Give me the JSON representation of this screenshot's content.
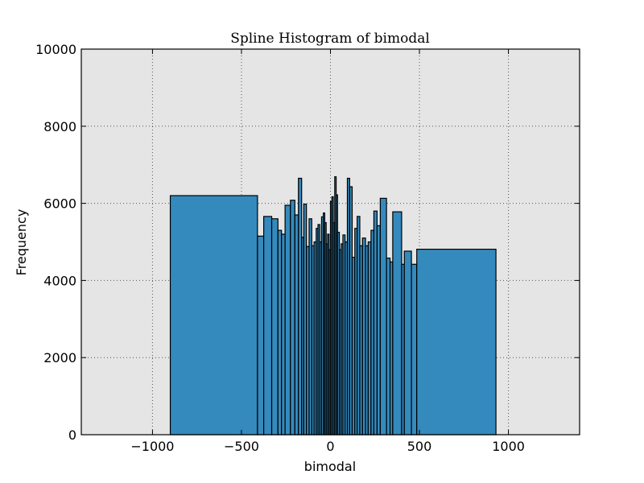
{
  "chart_data": {
    "type": "bar",
    "title": "Spline Histogram of bimodal",
    "xlabel": "bimodal",
    "ylabel": "Frequency",
    "xlim": [
      -1400,
      1400
    ],
    "ylim": [
      0,
      10000
    ],
    "xticks": [
      -1000,
      -500,
      0,
      500,
      1000
    ],
    "xtick_labels": [
      "−1000",
      "−500",
      "0",
      "500",
      "1000"
    ],
    "yticks": [
      0,
      2000,
      4000,
      6000,
      8000,
      10000
    ],
    "ytick_labels": [
      "0",
      "2000",
      "4000",
      "6000",
      "8000",
      "10000"
    ],
    "grid": true,
    "colors": {
      "bar_fill": "#348abd",
      "bar_edge": "#000000",
      "plot_bg": "#e5e5e5",
      "grid": "#555555"
    },
    "bins": [
      {
        "x0": -900,
        "x1": -410,
        "value": 6200
      },
      {
        "x0": -410,
        "x1": -375,
        "value": 5150
      },
      {
        "x0": -375,
        "x1": -330,
        "value": 5660
      },
      {
        "x0": -330,
        "x1": -295,
        "value": 5600
      },
      {
        "x0": -295,
        "x1": -275,
        "value": 5300
      },
      {
        "x0": -275,
        "x1": -255,
        "value": 5200
      },
      {
        "x0": -255,
        "x1": -225,
        "value": 5950
      },
      {
        "x0": -225,
        "x1": -200,
        "value": 6080
      },
      {
        "x0": -200,
        "x1": -180,
        "value": 5700
      },
      {
        "x0": -180,
        "x1": -162,
        "value": 6650
      },
      {
        "x0": -162,
        "x1": -150,
        "value": 5120
      },
      {
        "x0": -150,
        "x1": -135,
        "value": 5980
      },
      {
        "x0": -135,
        "x1": -120,
        "value": 4880
      },
      {
        "x0": -120,
        "x1": -105,
        "value": 5600
      },
      {
        "x0": -105,
        "x1": -92,
        "value": 4900
      },
      {
        "x0": -92,
        "x1": -80,
        "value": 5000
      },
      {
        "x0": -80,
        "x1": -70,
        "value": 5350
      },
      {
        "x0": -70,
        "x1": -60,
        "value": 5450
      },
      {
        "x0": -60,
        "x1": -50,
        "value": 5000
      },
      {
        "x0": -50,
        "x1": -40,
        "value": 5650
      },
      {
        "x0": -40,
        "x1": -32,
        "value": 5750
      },
      {
        "x0": -32,
        "x1": -24,
        "value": 5500
      },
      {
        "x0": -24,
        "x1": -16,
        "value": 4950
      },
      {
        "x0": -16,
        "x1": -8,
        "value": 5200
      },
      {
        "x0": -8,
        "x1": 0,
        "value": 4800
      },
      {
        "x0": 0,
        "x1": 8,
        "value": 6050
      },
      {
        "x0": 8,
        "x1": 16,
        "value": 6170
      },
      {
        "x0": 16,
        "x1": 24,
        "value": 5500
      },
      {
        "x0": 24,
        "x1": 32,
        "value": 6690
      },
      {
        "x0": 32,
        "x1": 40,
        "value": 6220
      },
      {
        "x0": 40,
        "x1": 50,
        "value": 5250
      },
      {
        "x0": 50,
        "x1": 60,
        "value": 4800
      },
      {
        "x0": 60,
        "x1": 70,
        "value": 4950
      },
      {
        "x0": 70,
        "x1": 82,
        "value": 5180
      },
      {
        "x0": 82,
        "x1": 95,
        "value": 5000
      },
      {
        "x0": 95,
        "x1": 108,
        "value": 6650
      },
      {
        "x0": 108,
        "x1": 122,
        "value": 6430
      },
      {
        "x0": 122,
        "x1": 137,
        "value": 4600
      },
      {
        "x0": 137,
        "x1": 150,
        "value": 5350
      },
      {
        "x0": 150,
        "x1": 165,
        "value": 5660
      },
      {
        "x0": 165,
        "x1": 180,
        "value": 4900
      },
      {
        "x0": 180,
        "x1": 197,
        "value": 5100
      },
      {
        "x0": 197,
        "x1": 212,
        "value": 4900
      },
      {
        "x0": 212,
        "x1": 228,
        "value": 5000
      },
      {
        "x0": 228,
        "x1": 244,
        "value": 5300
      },
      {
        "x0": 244,
        "x1": 262,
        "value": 5800
      },
      {
        "x0": 262,
        "x1": 280,
        "value": 5420
      },
      {
        "x0": 280,
        "x1": 315,
        "value": 6130
      },
      {
        "x0": 315,
        "x1": 335,
        "value": 4580
      },
      {
        "x0": 335,
        "x1": 350,
        "value": 4480
      },
      {
        "x0": 350,
        "x1": 400,
        "value": 5780
      },
      {
        "x0": 400,
        "x1": 415,
        "value": 4420
      },
      {
        "x0": 415,
        "x1": 455,
        "value": 4760
      },
      {
        "x0": 455,
        "x1": 485,
        "value": 4420
      },
      {
        "x0": 485,
        "x1": 930,
        "value": 4810
      }
    ]
  }
}
